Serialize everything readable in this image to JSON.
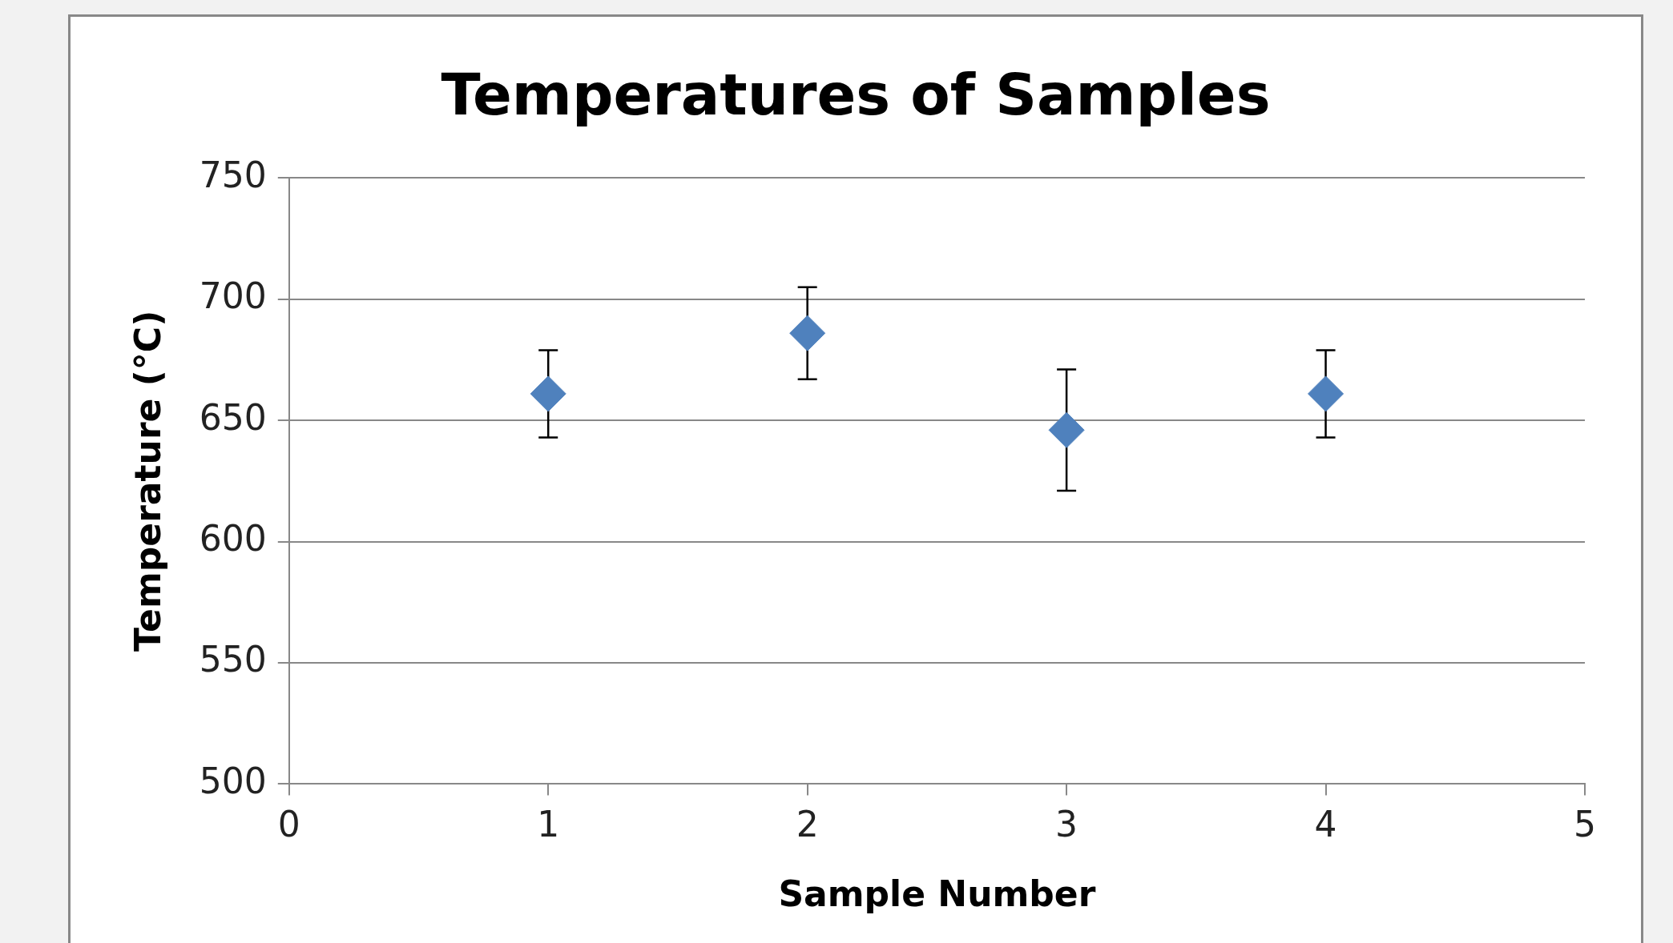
{
  "chart_data": {
    "type": "scatter",
    "title": "Temperatures of Samples",
    "xlabel": "Sample Number",
    "ylabel": "Temperature (°C)",
    "x": [
      1,
      2,
      3,
      4
    ],
    "series": [
      {
        "color": "#4f81bd",
        "values": [
          661,
          686,
          646,
          661
        ],
        "errors": [
          18,
          19,
          25,
          18
        ]
      }
    ],
    "xlim": [
      0,
      5
    ],
    "xticks": [
      0,
      1,
      2,
      3,
      4,
      5
    ],
    "ylim": [
      500,
      750
    ],
    "yticks": [
      500,
      550,
      600,
      650,
      700,
      750
    ],
    "grid": "y",
    "legend": false,
    "marker": "diamond"
  }
}
